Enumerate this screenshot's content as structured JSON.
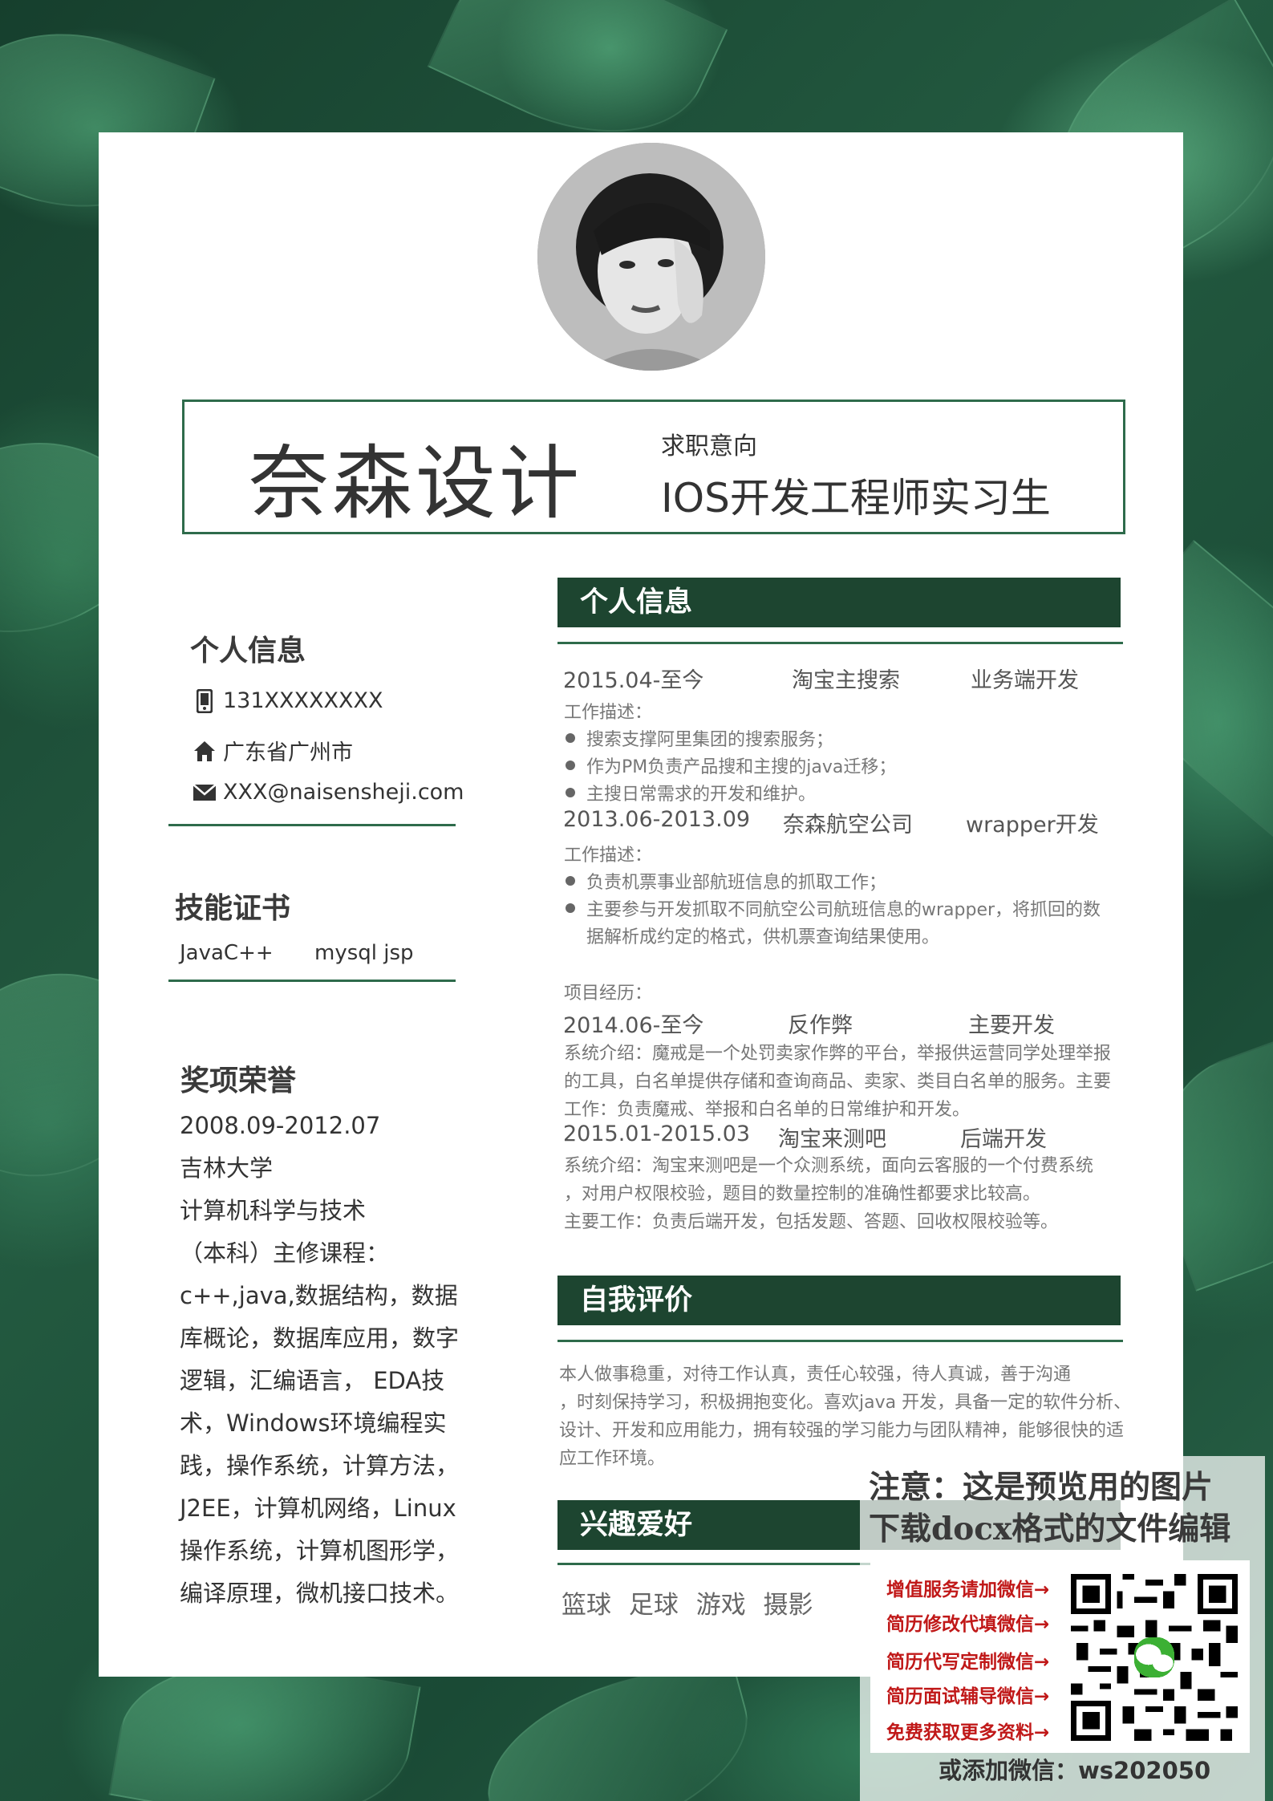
{
  "header": {
    "name": "奈森设计",
    "intent_label": "求职意向",
    "intent_value": "IOS开发工程师实习生"
  },
  "left": {
    "contact_title": "个人信息",
    "phone": "131XXXXXXXX",
    "address": "广东省广州市",
    "email": "XXX@naisensheji.com",
    "skills_title": "技能证书",
    "skills_a": "JavaC++",
    "skills_b": "mysql jsp",
    "awards_title": "奖项荣誉",
    "awards_lines": [
      "2008.09-2012.07",
      "吉林大学",
      "计算机科学与技术",
      "（本科）主修课程：",
      "c++,java,数据结构，数据",
      "库概论，数据库应用，数字",
      "逻辑，汇编语言，  EDA技",
      "术，Windows环境编程实",
      "践，操作系统，计算方法，",
      "J2EE，计算机网络，Linux",
      "操作系统，计算机图形学，",
      "编译原理，微机接口技术。"
    ]
  },
  "right": {
    "section1_title": "个人信息",
    "job1": {
      "date": "2015.04-至今",
      "company": "淘宝主搜索",
      "role": "业务端开发"
    },
    "job1_desc_label": "工作描述：",
    "job1_bullets": [
      "搜索支撑阿里集团的搜索服务；",
      "作为PM负责产品搜和主搜的java迁移；",
      "主搜日常需求的开发和维护。"
    ],
    "job2": {
      "date": "2013.06-2013.09",
      "company": "奈森航空公司",
      "role": "wrapper开发"
    },
    "job2_desc_label": "工作描述：",
    "job2_bullets": [
      "负责机票事业部航班信息的抓取工作；",
      "主要参与开发抓取不同航空公司航班信息的wrapper，将抓回的数"
    ],
    "job2_bullet_cont": "据解析成约定的格式，供机票查询结果使用。",
    "projects_label": "项目经历：",
    "proj1": {
      "date": "2014.06-至今",
      "name": "反作弊",
      "role": "主要开发"
    },
    "proj1_lines": [
      "系统介绍：魔戒是一个处罚卖家作弊的平台，举报供运营同学处理举报",
      "的工具，白名单提供存储和查询商品、卖家、类目白名单的服务。主要",
      "工作：负责魔戒、举报和白名单的日常维护和开发。"
    ],
    "proj2": {
      "date": "2015.01-2015.03",
      "name": "淘宝来测吧",
      "role": "后端开发"
    },
    "proj2_lines": [
      "系统介绍：淘宝来测吧是一个众测系统，面向云客服的一个付费系统",
      "，对用户权限校验，题目的数量控制的准确性都要求比较高。",
      "主要工作：负责后端开发，包括发题、答题、回收权限校验等。"
    ],
    "section2_title": "自我评价",
    "self_eval_lines": [
      "本人做事稳重，对待工作认真，责任心较强，待人真诚，善于沟通",
      "，时刻保持学习，积极拥抱变化。喜欢java 开发，具备一定的软件分析、",
      "设计、开发和应用能力，拥有较强的学习能力与团队精神，能够很快的适",
      "应工作环境。"
    ],
    "section3_title": "兴趣爱好",
    "hobbies": "篮球  足球  游戏  摄影"
  },
  "watermark": {
    "notice_line1": "注意：这是预览用的图片",
    "notice_line2": "下载docx格式的文件编辑",
    "items": [
      "增值服务请加微信→",
      "简历修改代填微信→",
      "简历代写定制微信→",
      "简历面试辅导微信→",
      "免费获取更多资料→"
    ],
    "bottom": "或添加微信：ws202050"
  },
  "colors": {
    "accent": "#2e6b4b",
    "section_bar": "#1d4530",
    "watermark_red": "#c01818"
  }
}
